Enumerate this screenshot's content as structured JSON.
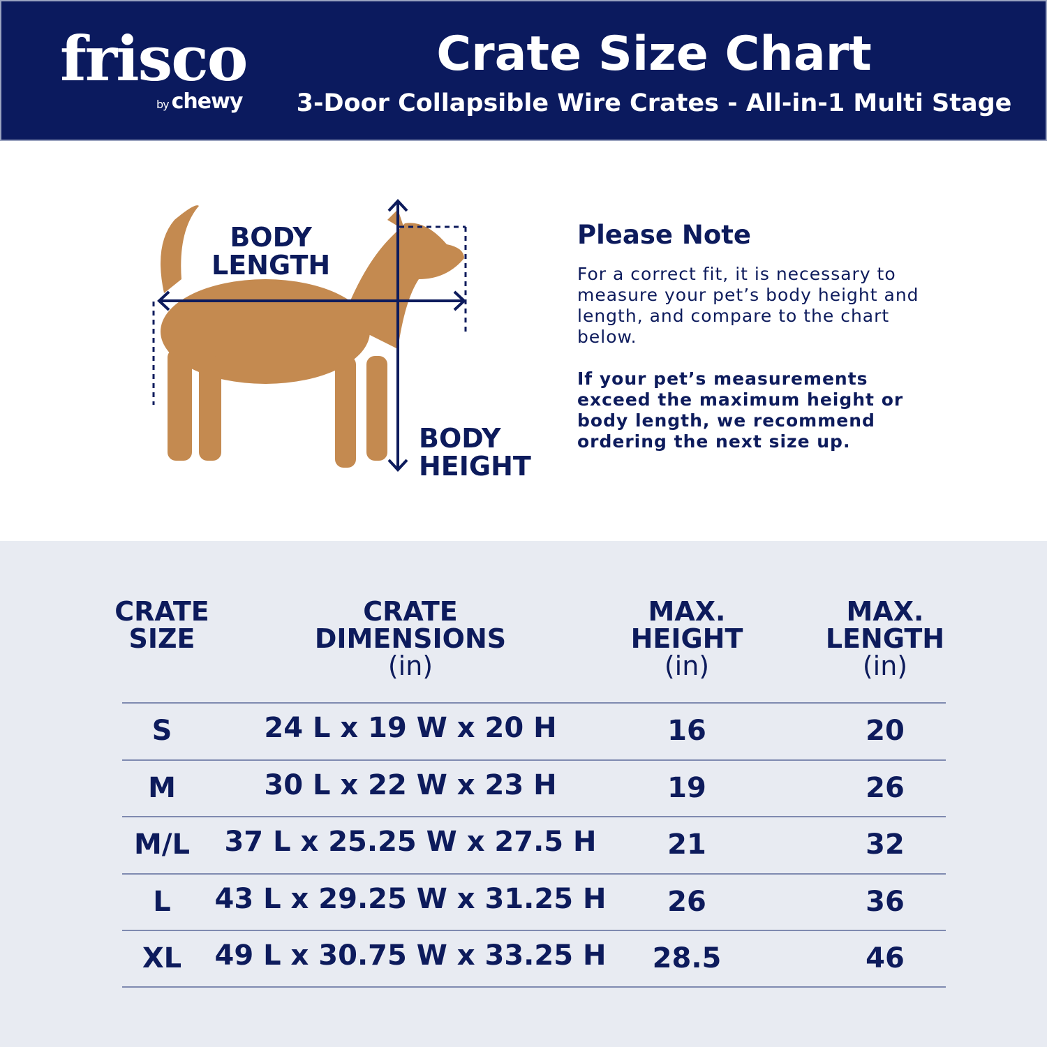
{
  "header": {
    "brand": "frisco",
    "brand_sub_prefix": "by",
    "brand_sub": "chewy",
    "title": "Crate Size Chart",
    "subtitle": "3-Door Collapsible Wire Crates - All-in-1 Multi Stage"
  },
  "diagram": {
    "length_label_1": "BODY",
    "length_label_2": "LENGTH",
    "height_label_1": "BODY",
    "height_label_2": "HEIGHT"
  },
  "note": {
    "heading": "Please Note",
    "body": "For a correct fit, it is necessary to measure your pet’s body height and length, and compare to the chart below.",
    "emphasis": "If your pet’s measurements exceed the maximum height or body length, we recommend ordering the next size up."
  },
  "colors": {
    "navy": "#0b1a5e",
    "table_bg": "#e8ebf2"
  },
  "table": {
    "headers": [
      {
        "l1": "CRATE",
        "l2": "SIZE",
        "unit": ""
      },
      {
        "l1": "CRATE",
        "l2": "DIMENSIONS",
        "unit": "(in)"
      },
      {
        "l1": "MAX.",
        "l2": "HEIGHT",
        "unit": "(in)"
      },
      {
        "l1": "MAX.",
        "l2": "LENGTH",
        "unit": "(in)"
      }
    ],
    "rows": [
      [
        "S",
        "24 L x 19 W x 20 H",
        "16",
        "20"
      ],
      [
        "M",
        "30 L x 22 W x 23 H",
        "19",
        "26"
      ],
      [
        "M/L",
        "37 L x 25.25 W x 27.5 H",
        "21",
        "32"
      ],
      [
        "L",
        "43 L x 29.25 W x 31.25 H",
        "26",
        "36"
      ],
      [
        "XL",
        "49 L x 30.75 W x 33.25 H",
        "28.5",
        "46"
      ]
    ]
  }
}
